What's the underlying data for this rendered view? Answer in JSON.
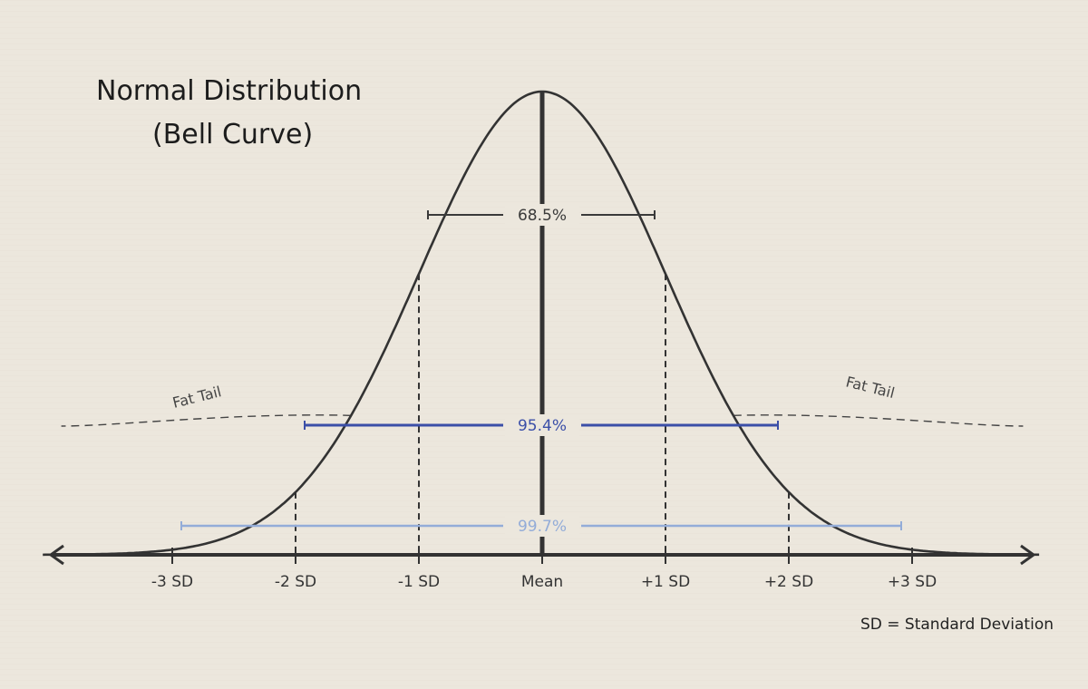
{
  "chart_data": {
    "type": "line",
    "title_line1": "Normal Distribution",
    "title_line2": "(Bell Curve)",
    "x_ticks": [
      {
        "value": -3,
        "label": "-3 SD"
      },
      {
        "value": -2,
        "label": "-2 SD"
      },
      {
        "value": -1,
        "label": "-1 SD"
      },
      {
        "value": 0,
        "label": "Mean"
      },
      {
        "value": 1,
        "label": "+1 SD"
      },
      {
        "value": 2,
        "label": "+2 SD"
      },
      {
        "value": 3,
        "label": "+3 SD"
      }
    ],
    "xlim": [
      -4,
      4
    ],
    "ranges": [
      {
        "from": -1,
        "to": 1,
        "label": "68.5%",
        "color": "#3a3a3a"
      },
      {
        "from": -2,
        "to": 2,
        "label": "95.4%",
        "color": "#3b4fa8"
      },
      {
        "from": -3,
        "to": 3,
        "label": "99.7%",
        "color": "#93acd8"
      }
    ],
    "fat_tail_label": "Fat Tail",
    "footnote": "SD = Standard Deviation",
    "grid": false,
    "colors": {
      "curve": "#333333",
      "axis": "#333333",
      "background": "#ece7dd"
    }
  }
}
